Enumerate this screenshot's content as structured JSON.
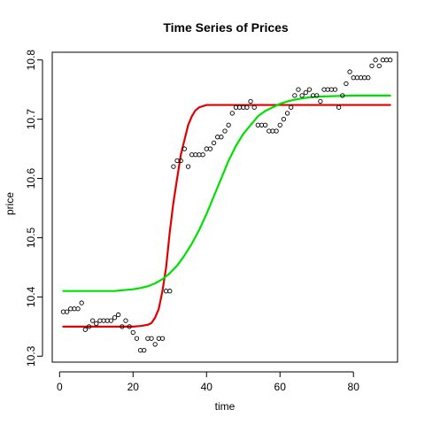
{
  "chart_data": {
    "type": "scatter",
    "title": "Time Series of Prices",
    "xlabel": "time",
    "ylabel": "price",
    "xlim": [
      -2,
      92
    ],
    "ylim": [
      10.29,
      10.813
    ],
    "x_ticks": [
      0,
      20,
      40,
      60,
      80
    ],
    "y_ticks": [
      10.3,
      10.4,
      10.5,
      10.6,
      10.7,
      10.8
    ],
    "x_tick_labels": [
      "0",
      "20",
      "40",
      "60",
      "80"
    ],
    "y_tick_labels": [
      "10.3",
      "10.4",
      "10.5",
      "10.6",
      "10.7",
      "10.8"
    ],
    "grid": false,
    "points": {
      "name": "observed price",
      "marker": "open-circle",
      "x": [
        1,
        2,
        3,
        4,
        5,
        6,
        7,
        8,
        9,
        10,
        11,
        12,
        13,
        14,
        15,
        16,
        17,
        18,
        19,
        20,
        21,
        22,
        23,
        24,
        25,
        26,
        27,
        28,
        29,
        30,
        31,
        32,
        33,
        34,
        35,
        36,
        37,
        38,
        39,
        40,
        41,
        42,
        43,
        44,
        45,
        46,
        47,
        48,
        49,
        50,
        51,
        52,
        53,
        54,
        55,
        56,
        57,
        58,
        59,
        60,
        61,
        62,
        63,
        64,
        65,
        66,
        67,
        68,
        69,
        70,
        71,
        72,
        73,
        74,
        75,
        76,
        77,
        78,
        79,
        80,
        81,
        82,
        83,
        84,
        85,
        86,
        87,
        88,
        89,
        90
      ],
      "y": [
        10.375,
        10.375,
        10.38,
        10.38,
        10.38,
        10.39,
        10.345,
        10.35,
        10.36,
        10.355,
        10.36,
        10.36,
        10.36,
        10.36,
        10.365,
        10.37,
        10.35,
        10.36,
        10.35,
        10.34,
        10.33,
        10.31,
        10.31,
        10.33,
        10.33,
        10.32,
        10.33,
        10.33,
        10.41,
        10.41,
        10.62,
        10.63,
        10.63,
        10.65,
        10.62,
        10.64,
        10.64,
        10.64,
        10.64,
        10.65,
        10.65,
        10.66,
        10.67,
        10.67,
        10.68,
        10.69,
        10.71,
        10.72,
        10.72,
        10.72,
        10.72,
        10.73,
        10.72,
        10.69,
        10.69,
        10.69,
        10.68,
        10.68,
        10.68,
        10.69,
        10.7,
        10.71,
        10.72,
        10.74,
        10.75,
        10.74,
        10.745,
        10.75,
        10.74,
        10.74,
        10.73,
        10.75,
        10.75,
        10.75,
        10.75,
        10.72,
        10.74,
        10.76,
        10.78,
        10.77,
        10.77,
        10.77,
        10.77,
        10.77,
        10.79,
        10.8,
        10.79,
        10.8,
        10.8,
        10.8
      ]
    },
    "series": [
      {
        "name": "red fitted curve",
        "color": "#e00000",
        "type": "line",
        "x": [
          1,
          5,
          10,
          15,
          20,
          22,
          24,
          25,
          26,
          27,
          28,
          29,
          30,
          31,
          32,
          33,
          34,
          35,
          36,
          37,
          38,
          40,
          45,
          50,
          55,
          60,
          65,
          70,
          75,
          80,
          85,
          90
        ],
        "y": [
          10.35,
          10.35,
          10.35,
          10.35,
          10.35,
          10.351,
          10.353,
          10.356,
          10.365,
          10.38,
          10.41,
          10.45,
          10.51,
          10.56,
          10.6,
          10.64,
          10.665,
          10.69,
          10.705,
          10.715,
          10.72,
          10.724,
          10.724,
          10.724,
          10.724,
          10.724,
          10.724,
          10.724,
          10.724,
          10.724,
          10.724,
          10.724
        ]
      },
      {
        "name": "green fitted curve",
        "color": "#00e000",
        "type": "line",
        "x": [
          1,
          5,
          10,
          15,
          20,
          22,
          24,
          26,
          28,
          30,
          32,
          34,
          36,
          38,
          40,
          42,
          44,
          46,
          48,
          50,
          52,
          54,
          56,
          58,
          60,
          62,
          64,
          66,
          68,
          70,
          75,
          80,
          85,
          90
        ],
        "y": [
          10.41,
          10.41,
          10.41,
          10.41,
          10.413,
          10.415,
          10.418,
          10.423,
          10.43,
          10.44,
          10.453,
          10.47,
          10.49,
          10.513,
          10.54,
          10.57,
          10.6,
          10.63,
          10.655,
          10.675,
          10.69,
          10.705,
          10.714,
          10.72,
          10.726,
          10.73,
          10.733,
          10.735,
          10.737,
          10.738,
          10.739,
          10.74,
          10.74,
          10.74
        ]
      }
    ]
  }
}
